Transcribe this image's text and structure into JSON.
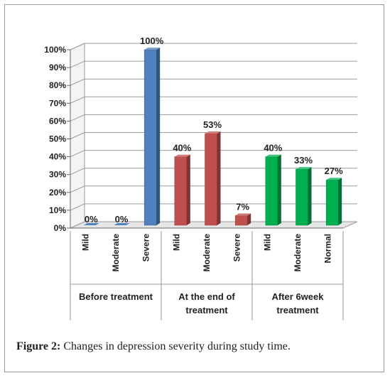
{
  "caption": {
    "label": "Figure 2:",
    "text": " Changes in depression severity during study time."
  },
  "chart_data": {
    "type": "bar",
    "style": "3d-columns",
    "title": "",
    "xlabel": "",
    "ylabel": "",
    "ylim": [
      0,
      100
    ],
    "yticks": [
      "0%",
      "10%",
      "20%",
      "30%",
      "40%",
      "50%",
      "60%",
      "70%",
      "80%",
      "90%",
      "100%"
    ],
    "grid": true,
    "legend": "none",
    "groups": [
      {
        "label": "Before treatment",
        "color": "#4f81bd",
        "categories": [
          "Mild",
          "Moderate",
          "Severe"
        ],
        "values": [
          0,
          0,
          100
        ],
        "labels": [
          "0%",
          "0%",
          "100%"
        ]
      },
      {
        "label": "At the end of treatment",
        "color": "#c0504d",
        "categories": [
          "Mild",
          "Moderate",
          "Severe"
        ],
        "values": [
          40,
          53,
          7
        ],
        "labels": [
          "40%",
          "53%",
          "7%"
        ]
      },
      {
        "label": "After 6week treatment",
        "color": "#00b050",
        "categories": [
          "Mild",
          "Moderate",
          "Normal"
        ],
        "values": [
          40,
          33,
          27
        ],
        "labels": [
          "40%",
          "33%",
          "27%"
        ]
      }
    ]
  }
}
